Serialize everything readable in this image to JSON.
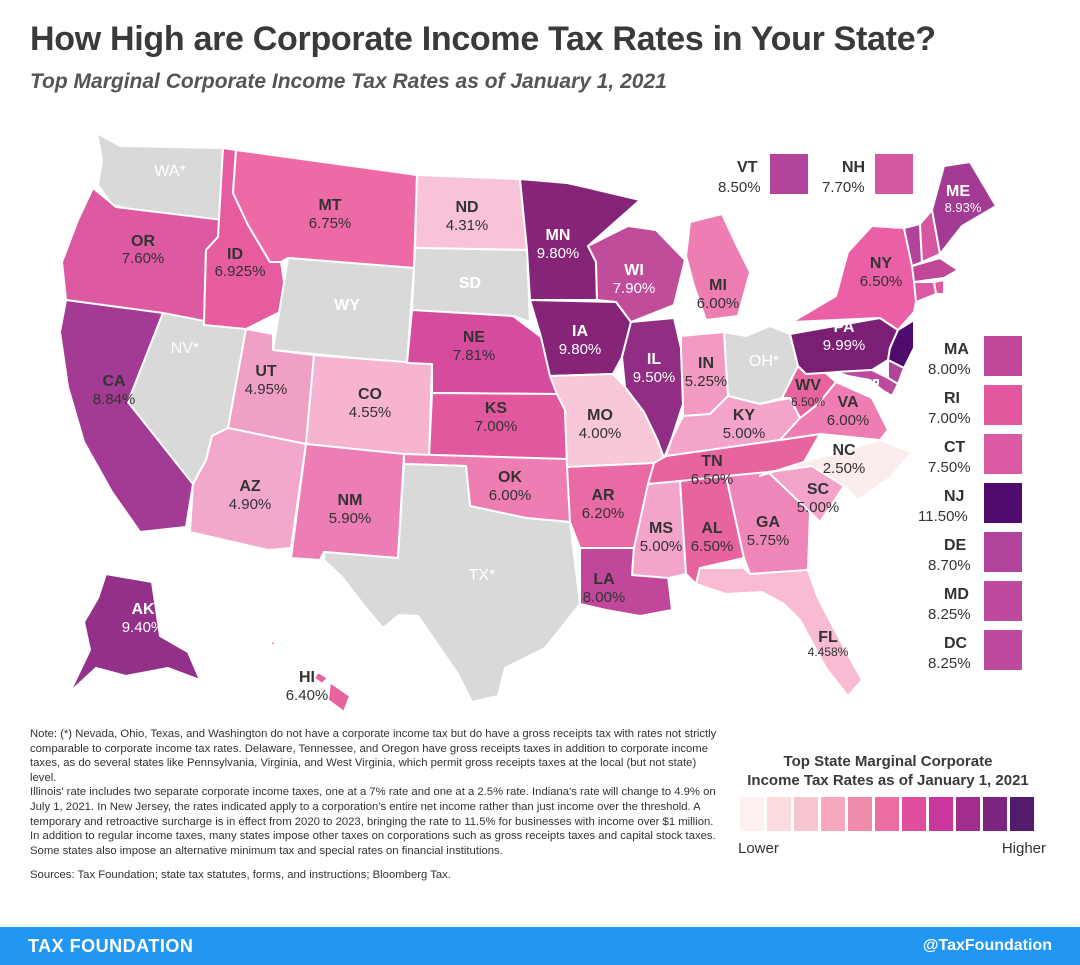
{
  "title": "How High are Corporate Income Tax Rates in Your State?",
  "subtitle": "Top Marginal Corporate Income Tax Rates as of January 1, 2021",
  "colors": {
    "none": "#d9d9d9",
    "scale": [
      "#fdf0ee",
      "#fbdde0",
      "#f8c6cf",
      "#f6a9bd",
      "#f18bab",
      "#ec6ea0",
      "#e04f9f",
      "#c9379c",
      "#a12d8e",
      "#7b2580",
      "#521b6c"
    ]
  },
  "states": {
    "WA": {
      "code": "WA*",
      "rate": "",
      "color": "#d9d9d9"
    },
    "OR": {
      "code": "OR",
      "rate": "7.60%",
      "color": "#dd5aa3"
    },
    "CA": {
      "code": "CA",
      "rate": "8.84%",
      "color": "#a33a93"
    },
    "NV": {
      "code": "NV*",
      "rate": "",
      "color": "#d9d9d9"
    },
    "ID": {
      "code": "ID",
      "rate": "6.925%",
      "color": "#e65c9e"
    },
    "MT": {
      "code": "MT",
      "rate": "6.75%",
      "color": "#ee6aa7"
    },
    "WY": {
      "code": "WY",
      "rate": "",
      "color": "#d9d9d9"
    },
    "UT": {
      "code": "UT",
      "rate": "4.95%",
      "color": "#f0a0c5"
    },
    "AZ": {
      "code": "AZ",
      "rate": "4.90%",
      "color": "#f2a8cb"
    },
    "CO": {
      "code": "CO",
      "rate": "4.55%",
      "color": "#f7b4d0"
    },
    "NM": {
      "code": "NM",
      "rate": "5.90%",
      "color": "#ec7db5"
    },
    "ND": {
      "code": "ND",
      "rate": "4.31%",
      "color": "#f8c2d8"
    },
    "SD": {
      "code": "SD",
      "rate": "",
      "color": "#d9d9d9"
    },
    "NE": {
      "code": "NE",
      "rate": "7.81%",
      "color": "#d54b9e"
    },
    "KS": {
      "code": "KS",
      "rate": "7.00%",
      "color": "#e2589e"
    },
    "OK": {
      "code": "OK",
      "rate": "6.00%",
      "color": "#ee7db4"
    },
    "TX": {
      "code": "TX*",
      "rate": "",
      "color": "#d9d9d9"
    },
    "MN": {
      "code": "MN",
      "rate": "9.80%",
      "color": "#862477"
    },
    "IA": {
      "code": "IA",
      "rate": "9.80%",
      "color": "#862477"
    },
    "MO": {
      "code": "MO",
      "rate": "4.00%",
      "color": "#f8c7da"
    },
    "AR": {
      "code": "AR",
      "rate": "6.20%",
      "color": "#ea6aa6"
    },
    "LA": {
      "code": "LA",
      "rate": "8.00%",
      "color": "#c1479b"
    },
    "WI": {
      "code": "WI",
      "rate": "7.90%",
      "color": "#c04d9a"
    },
    "IL": {
      "code": "IL",
      "rate": "9.50%",
      "color": "#912d82"
    },
    "MI": {
      "code": "MI",
      "rate": "6.00%",
      "color": "#ee7db4"
    },
    "IN": {
      "code": "IN",
      "rate": "5.25%",
      "color": "#f39ac2"
    },
    "OH": {
      "code": "OH*",
      "rate": "",
      "color": "#d9d9d9"
    },
    "KY": {
      "code": "KY",
      "rate": "5.00%",
      "color": "#f4a4c8"
    },
    "TN": {
      "code": "TN",
      "rate": "6.50%",
      "color": "#e8649f"
    },
    "MS": {
      "code": "MS",
      "rate": "5.00%",
      "color": "#f4a4c8"
    },
    "AL": {
      "code": "AL",
      "rate": "6.50%",
      "color": "#e8649f"
    },
    "GA": {
      "code": "GA",
      "rate": "5.75%",
      "color": "#ef86b9"
    },
    "FL": {
      "code": "FL",
      "rate": "4.458%",
      "color": "#f9bad3"
    },
    "SC": {
      "code": "SC",
      "rate": "5.00%",
      "color": "#f4a4c8"
    },
    "NC": {
      "code": "NC",
      "rate": "2.50%",
      "color": "#fbeded"
    },
    "VA": {
      "code": "VA",
      "rate": "6.00%",
      "color": "#ee7db4"
    },
    "WV": {
      "code": "WV",
      "rate": "6.50%",
      "color": "#e8649f"
    },
    "PA": {
      "code": "PA",
      "rate": "9.99%",
      "color": "#7a1f73"
    },
    "NY": {
      "code": "NY",
      "rate": "6.50%",
      "color": "#ea5fa6"
    },
    "ME": {
      "code": "ME",
      "rate": "8.93%",
      "color": "#a33a93"
    },
    "AK": {
      "code": "AK",
      "rate": "9.40%",
      "color": "#93318a"
    },
    "HI": {
      "code": "HI",
      "rate": "6.40%",
      "color": "#e8649f"
    }
  },
  "small_states": {
    "VT": {
      "code": "VT",
      "rate": "8.50%",
      "color": "#b1439a"
    },
    "NH": {
      "code": "NH",
      "rate": "7.70%",
      "color": "#d5579f"
    },
    "MA": {
      "code": "MA",
      "rate": "8.00%",
      "color": "#c1479b"
    },
    "RI": {
      "code": "RI",
      "rate": "7.00%",
      "color": "#e2589e"
    },
    "CT": {
      "code": "CT",
      "rate": "7.50%",
      "color": "#dc5aa3"
    },
    "NJ": {
      "code": "NJ",
      "rate": "11.50%",
      "color": "#4f0b6e"
    },
    "DE": {
      "code": "DE",
      "rate": "8.70%",
      "color": "#b1439a"
    },
    "MD": {
      "code": "MD",
      "rate": "8.25%",
      "color": "#bd4a9c"
    },
    "DC": {
      "code": "DC",
      "rate": "8.25%",
      "color": "#bd4a9c"
    }
  },
  "note": {
    "p1": "Note: (*) Nevada, Ohio, Texas, and Washington do not have a corporate income tax but do have a gross receipts tax with rates not strictly comparable to corporate income tax rates. Delaware, Tennessee, and Oregon have gross receipts taxes in addition to corporate income taxes, as do several states like Pennsylvania, Virginia, and West Virginia, which permit gross receipts taxes at the local (but not state) level.",
    "p2": "Illinois' rate includes two separate corporate income taxes, one at a 7% rate and one at a 2.5% rate.  Indiana's rate will change to 4.9% on July 1, 2021.  In New Jersey, the rates indicated apply to a corporation's entire net income rather than just income over the threshold. A temporary and retroactive surcharge is in effect from 2020 to 2023, bringing the rate to 11.5% for businesses with income over $1 million. In addition to regular income taxes, many states impose other taxes on corporations such as gross receipts taxes and capital stock taxes. Some states also impose an alternative minimum tax and special rates on financial institutions.",
    "sources": "Sources: Tax Foundation; state tax statutes, forms, and instructions; Bloomberg Tax."
  },
  "legend": {
    "title_line1": "Top State Marginal Corporate",
    "title_line2": "Income Tax Rates as of January 1, 2021",
    "low": "Lower",
    "high": "Higher"
  },
  "footer": {
    "brand": "TAX FOUNDATION",
    "handle": "@TaxFoundation"
  }
}
